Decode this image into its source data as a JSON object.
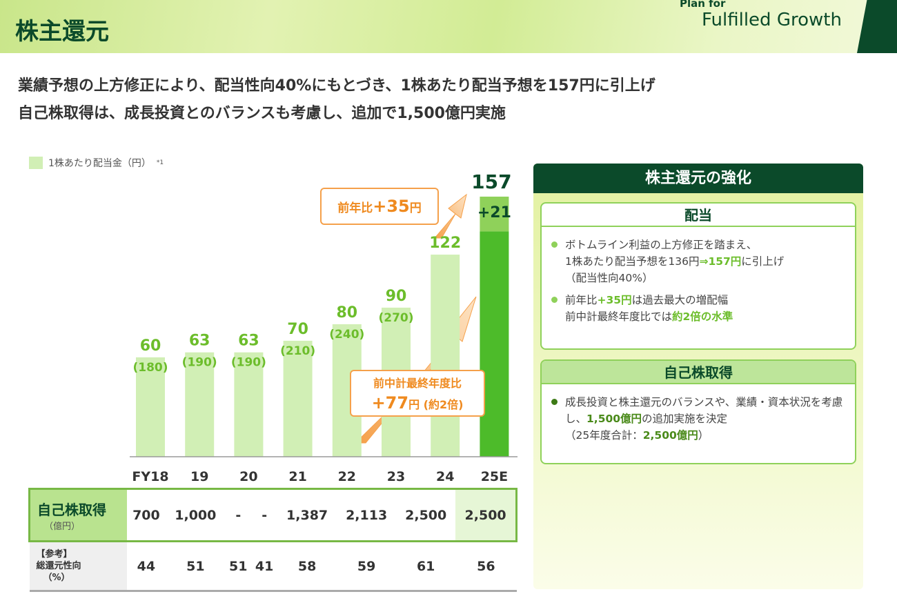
{
  "header": {
    "title": "株主還元",
    "logo_line1": "Plan for",
    "logo_line2": "Fulfilled Growth"
  },
  "lead": [
    "業績予想の上方修正により、配当性向40%にもとづき、1株あたり配当予想を157円に引上げ",
    "自己株取得は、成長投資とのバランスも考慮し、追加で1,500億円実施"
  ],
  "chart_data": {
    "type": "bar",
    "legend": {
      "label": "1株あたり配当金（円）",
      "note": "*1",
      "placement": "top-left"
    },
    "categories": [
      "FY18",
      "19",
      "20",
      "21",
      "22",
      "23",
      "24",
      "25E"
    ],
    "values": [
      60,
      63,
      63,
      70,
      80,
      90,
      122,
      157
    ],
    "secondary_labels": [
      "(180)",
      "(190)",
      "(190)",
      "(210)",
      "(240)",
      "(270)",
      "",
      ""
    ],
    "last_bar_base": 136,
    "last_bar_increment_label": "+21",
    "colors": {
      "past": "#d1efb5",
      "forecast_base": "#8fd15a",
      "forecast_increment": "#4dbb2a",
      "value_text": "#6cbd2b",
      "last_value_text": "#0b4a2a"
    },
    "ylim": [
      0,
      160
    ],
    "grid": false,
    "annotations": [
      {
        "text_a": "前年比",
        "text_b": "+35",
        "text_c": "円"
      },
      {
        "line1": "前中計最終年度比",
        "text_b": "+77",
        "text_c": "円",
        "text_d": " (約2倍)"
      }
    ]
  },
  "table": {
    "rows": [
      {
        "label": "自己株取得",
        "unit": "（億円）",
        "values": [
          "700",
          "1,000",
          "-",
          "-",
          "1,387",
          "2,113",
          "2,500",
          "2,500"
        ]
      },
      {
        "label_a": "【参考】",
        "label_b": "総還元性向",
        "label_c": "（%）",
        "values": [
          "44",
          "51",
          "51",
          "41",
          "58",
          "59",
          "61",
          "56"
        ]
      }
    ]
  },
  "panel": {
    "title": "株主還元の強化",
    "dividend": {
      "title": "配当",
      "b1_a": "ボトムライン利益の上方修正を踏まえ、",
      "b1_b": "1株あたり配当予想を136円",
      "b1_c": "⇒157円",
      "b1_d": "に引上げ",
      "b1_e": "（配当性向40%）",
      "b2_a": "前年比",
      "b2_b": "+35円",
      "b2_c": "は過去最大の増配幅",
      "b2_d": "前中計最終年度比では",
      "b2_e": "約2倍の水準"
    },
    "buyback": {
      "title": "自己株取得",
      "b1_a": "成長投資と株主還元のバランスや、業績・資本状況を考慮し、",
      "b1_b": "1,500億円",
      "b1_c": "の追加実施を決定",
      "b1_d": "（25年度合計：",
      "b1_e": "2,500億円",
      "b1_f": "）"
    }
  }
}
